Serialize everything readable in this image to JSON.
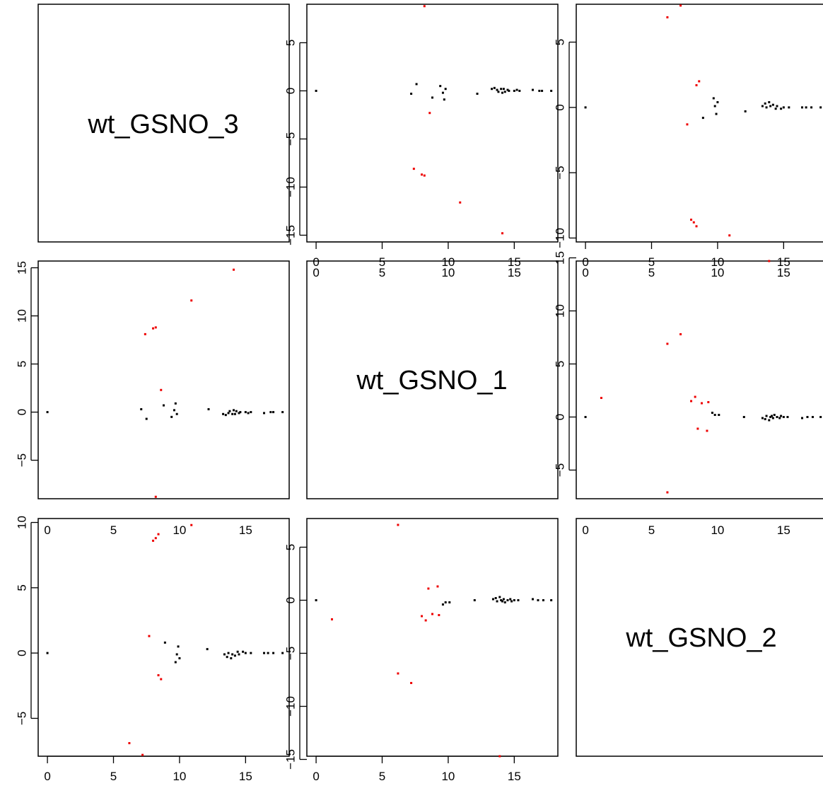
{
  "chart_data": {
    "type": "scatter",
    "layout": "pairs-matrix",
    "grid": false,
    "colors": {
      "normal": "#000000",
      "highlight": "#ee0000",
      "frame": "#000000",
      "text": "#000000"
    },
    "variables": [
      "wt_GSNO_3",
      "wt_GSNO_1",
      "wt_GSNO_2"
    ],
    "ticks": {
      "x": [
        "0",
        "5",
        "10",
        "15"
      ],
      "y_13": [
        "−15",
        "−10",
        "−5",
        "0",
        "5"
      ],
      "y_23": [
        "−10",
        "−5",
        "0",
        "5"
      ],
      "y_21": [
        "−5",
        "0",
        "5",
        "10",
        "15"
      ],
      "y_26": [
        "−5",
        "0",
        "5",
        "10",
        "15"
      ],
      "y_31": [
        "−5",
        "0",
        "5",
        "10"
      ],
      "y_35": [
        "−15",
        "−10",
        "−5",
        "0",
        "5"
      ]
    },
    "panels": [
      {
        "id": "p12",
        "row": 1,
        "col": 2,
        "xlim": [
          -0.7,
          18.3
        ],
        "ylim": [
          -15.7,
          9.0
        ],
        "normal": [
          [
            0,
            0
          ],
          [
            7.2,
            -0.3
          ],
          [
            7.6,
            0.7
          ],
          [
            8.8,
            -0.7
          ],
          [
            9.4,
            0.5
          ],
          [
            9.6,
            -0.2
          ],
          [
            9.7,
            -0.9
          ],
          [
            9.8,
            0.2
          ],
          [
            12.2,
            -0.3
          ],
          [
            13.3,
            0.2
          ],
          [
            13.5,
            0.3
          ],
          [
            13.7,
            0.1
          ],
          [
            13.8,
            -0.1
          ],
          [
            14.0,
            0.2
          ],
          [
            14.1,
            -0.2
          ],
          [
            14.2,
            0.2
          ],
          [
            14.3,
            -0.1
          ],
          [
            14.5,
            0.1
          ],
          [
            14.6,
            0.0
          ],
          [
            15.0,
            0.0
          ],
          [
            15.2,
            0.1
          ],
          [
            15.4,
            0.0
          ],
          [
            16.4,
            0.1
          ],
          [
            16.9,
            0.0
          ],
          [
            17.1,
            0.0
          ],
          [
            17.8,
            0.0
          ]
        ],
        "highlight": [
          [
            8.2,
            8.8
          ],
          [
            7.4,
            -8.1
          ],
          [
            8.0,
            -8.7
          ],
          [
            8.2,
            -8.8
          ],
          [
            8.6,
            -2.3
          ],
          [
            10.9,
            -11.6
          ],
          [
            14.1,
            -14.8
          ]
        ]
      },
      {
        "id": "p13",
        "row": 1,
        "col": 3,
        "xlim": [
          -0.7,
          18.3
        ],
        "ylim": [
          -10.3,
          7.9
        ],
        "normal": [
          [
            0,
            0
          ],
          [
            8.9,
            -0.8
          ],
          [
            9.7,
            0.7
          ],
          [
            9.8,
            0.1
          ],
          [
            9.9,
            -0.5
          ],
          [
            10.0,
            0.4
          ],
          [
            12.1,
            -0.3
          ],
          [
            13.4,
            0.1
          ],
          [
            13.6,
            0.3
          ],
          [
            13.7,
            0.0
          ],
          [
            13.9,
            0.4
          ],
          [
            14.0,
            0.1
          ],
          [
            14.2,
            0.2
          ],
          [
            14.4,
            -0.1
          ],
          [
            14.5,
            0.1
          ],
          [
            14.8,
            -0.1
          ],
          [
            15.0,
            0.0
          ],
          [
            15.4,
            0.0
          ],
          [
            16.4,
            0.0
          ],
          [
            16.7,
            0.0
          ],
          [
            17.1,
            0.0
          ],
          [
            17.8,
            0.0
          ]
        ],
        "highlight": [
          [
            6.2,
            6.9
          ],
          [
            7.2,
            7.8
          ],
          [
            7.7,
            -1.3
          ],
          [
            8.0,
            -8.6
          ],
          [
            8.2,
            -8.8
          ],
          [
            8.4,
            1.7
          ],
          [
            8.6,
            2.0
          ],
          [
            8.4,
            -9.1
          ],
          [
            10.9,
            -9.8
          ]
        ]
      },
      {
        "id": "p21",
        "row": 2,
        "col": 1,
        "xlim": [
          -0.7,
          18.3
        ],
        "ylim": [
          -9.0,
          15.7
        ],
        "normal": [
          [
            0,
            0
          ],
          [
            7.1,
            0.3
          ],
          [
            7.5,
            -0.7
          ],
          [
            8.8,
            0.7
          ],
          [
            9.4,
            -0.5
          ],
          [
            9.6,
            0.2
          ],
          [
            9.7,
            0.9
          ],
          [
            9.8,
            -0.2
          ],
          [
            12.2,
            0.3
          ],
          [
            13.3,
            -0.2
          ],
          [
            13.5,
            -0.3
          ],
          [
            13.7,
            -0.1
          ],
          [
            13.8,
            0.1
          ],
          [
            14.0,
            -0.2
          ],
          [
            14.1,
            0.2
          ],
          [
            14.2,
            -0.2
          ],
          [
            14.3,
            0.1
          ],
          [
            14.5,
            -0.1
          ],
          [
            14.6,
            0.0
          ],
          [
            15.0,
            0.0
          ],
          [
            15.2,
            -0.1
          ],
          [
            15.4,
            0.0
          ],
          [
            16.4,
            -0.1
          ],
          [
            16.9,
            0.0
          ],
          [
            17.1,
            0.0
          ],
          [
            17.8,
            0.0
          ]
        ],
        "highlight": [
          [
            8.2,
            -8.8
          ],
          [
            7.4,
            8.1
          ],
          [
            8.0,
            8.7
          ],
          [
            8.2,
            8.8
          ],
          [
            8.6,
            2.3
          ],
          [
            10.9,
            11.6
          ],
          [
            14.1,
            14.8
          ]
        ]
      },
      {
        "id": "p23",
        "row": 2,
        "col": 3,
        "xlim": [
          -0.7,
          18.3
        ],
        "ylim": [
          -7.7,
          14.7
        ],
        "normal": [
          [
            0,
            0
          ],
          [
            9.6,
            0.4
          ],
          [
            9.8,
            0.2
          ],
          [
            10.1,
            0.2
          ],
          [
            12.0,
            0.0
          ],
          [
            13.4,
            -0.1
          ],
          [
            13.6,
            -0.2
          ],
          [
            13.7,
            0.1
          ],
          [
            13.9,
            -0.3
          ],
          [
            14.0,
            0.0
          ],
          [
            14.1,
            0.1
          ],
          [
            14.2,
            -0.1
          ],
          [
            14.3,
            0.2
          ],
          [
            14.5,
            0.0
          ],
          [
            14.7,
            -0.1
          ],
          [
            14.8,
            0.1
          ],
          [
            15.0,
            0.0
          ],
          [
            15.3,
            0.0
          ],
          [
            16.4,
            -0.1
          ],
          [
            16.8,
            0.0
          ],
          [
            17.2,
            0.0
          ],
          [
            17.8,
            0.0
          ]
        ],
        "highlight": [
          [
            1.2,
            1.8
          ],
          [
            6.2,
            6.9
          ],
          [
            7.2,
            7.8
          ],
          [
            8.0,
            1.5
          ],
          [
            8.3,
            1.9
          ],
          [
            8.8,
            1.3
          ],
          [
            9.3,
            1.4
          ],
          [
            8.5,
            -1.1
          ],
          [
            9.2,
            -1.3
          ],
          [
            6.2,
            -7.1
          ],
          [
            13.9,
            14.7
          ]
        ]
      },
      {
        "id": "p31",
        "row": 3,
        "col": 1,
        "xlim": [
          -0.7,
          18.3
        ],
        "ylim": [
          -7.9,
          10.3
        ],
        "normal": [
          [
            0,
            0
          ],
          [
            8.9,
            0.8
          ],
          [
            9.7,
            -0.7
          ],
          [
            9.8,
            -0.1
          ],
          [
            9.9,
            0.5
          ],
          [
            10.0,
            -0.4
          ],
          [
            12.1,
            0.3
          ],
          [
            13.4,
            -0.1
          ],
          [
            13.6,
            -0.3
          ],
          [
            13.7,
            0.0
          ],
          [
            13.9,
            -0.4
          ],
          [
            14.0,
            -0.1
          ],
          [
            14.2,
            -0.2
          ],
          [
            14.4,
            0.1
          ],
          [
            14.5,
            -0.1
          ],
          [
            14.8,
            0.1
          ],
          [
            15.0,
            0.0
          ],
          [
            15.4,
            0.0
          ],
          [
            16.4,
            0.0
          ],
          [
            16.7,
            0.0
          ],
          [
            17.1,
            0.0
          ],
          [
            17.8,
            0.0
          ]
        ],
        "highlight": [
          [
            6.2,
            -6.9
          ],
          [
            7.2,
            -7.8
          ],
          [
            7.7,
            1.3
          ],
          [
            8.0,
            8.6
          ],
          [
            8.2,
            8.8
          ],
          [
            8.4,
            -1.7
          ],
          [
            8.6,
            -2.0
          ],
          [
            8.4,
            9.1
          ],
          [
            10.9,
            9.8
          ]
        ]
      },
      {
        "id": "p32",
        "row": 3,
        "col": 2,
        "xlim": [
          -0.7,
          18.3
        ],
        "ylim": [
          -14.7,
          7.7
        ],
        "normal": [
          [
            0,
            0
          ],
          [
            9.6,
            -0.4
          ],
          [
            9.8,
            -0.2
          ],
          [
            10.1,
            -0.2
          ],
          [
            12.0,
            0.0
          ],
          [
            13.4,
            0.1
          ],
          [
            13.6,
            0.2
          ],
          [
            13.7,
            -0.1
          ],
          [
            13.9,
            0.3
          ],
          [
            14.0,
            0.0
          ],
          [
            14.1,
            -0.1
          ],
          [
            14.2,
            0.1
          ],
          [
            14.3,
            -0.2
          ],
          [
            14.5,
            0.0
          ],
          [
            14.7,
            0.1
          ],
          [
            14.8,
            -0.1
          ],
          [
            15.0,
            0.0
          ],
          [
            15.3,
            0.0
          ],
          [
            16.4,
            0.1
          ],
          [
            16.8,
            0.0
          ],
          [
            17.2,
            0.0
          ],
          [
            17.8,
            0.0
          ]
        ],
        "highlight": [
          [
            1.2,
            -1.8
          ],
          [
            6.2,
            -6.9
          ],
          [
            7.2,
            -7.8
          ],
          [
            8.0,
            -1.5
          ],
          [
            8.3,
            -1.9
          ],
          [
            8.8,
            -1.3
          ],
          [
            9.3,
            -1.4
          ],
          [
            8.5,
            1.1
          ],
          [
            9.2,
            1.3
          ],
          [
            6.2,
            7.1
          ],
          [
            13.9,
            -14.7
          ]
        ]
      }
    ]
  }
}
